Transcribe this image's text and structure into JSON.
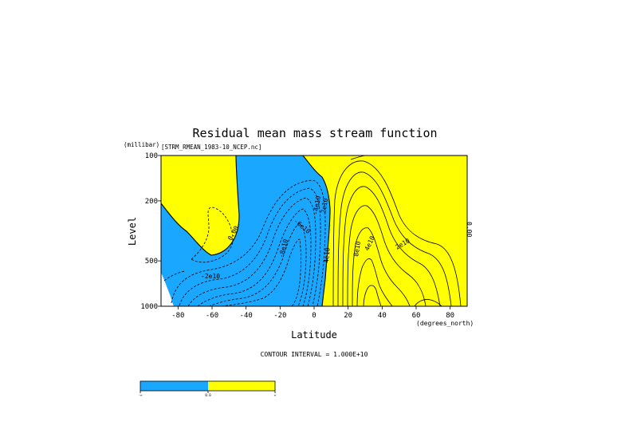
{
  "chart_data": {
    "type": "contour",
    "title": "Residual mean mass stream function",
    "subtitle": "[STRM_RMEAN_1983-10_NCEP.nc]",
    "xlabel": "Latitude",
    "x_units": "(degrees_north)",
    "ylabel": "Level",
    "y_units": "(millibar)",
    "x_ticks": [
      -80,
      -60,
      -40,
      -20,
      0,
      20,
      40,
      60,
      80
    ],
    "y_ticks": [
      100,
      200,
      500,
      1000
    ],
    "xlim": [
      -90,
      90
    ],
    "ylim": [
      1000,
      100
    ],
    "y_scale": "log",
    "contour_interval_label": "CONTOUR INTERVAL = 1.000E+10",
    "contour_labels": [
      "0.00",
      "2e10",
      "4e10",
      "6e10",
      "8e10",
      "-2e10",
      "-4e10",
      "-6e10",
      "-8e10"
    ],
    "colorbar": {
      "colors": [
        "#1aa7ff",
        "#ffff00"
      ],
      "tick_labels": [
        "-∞",
        "0.0",
        "∞"
      ]
    },
    "colors": {
      "negative": "#1aa7ff",
      "positive": "#ffff00",
      "line": "#000000"
    }
  }
}
